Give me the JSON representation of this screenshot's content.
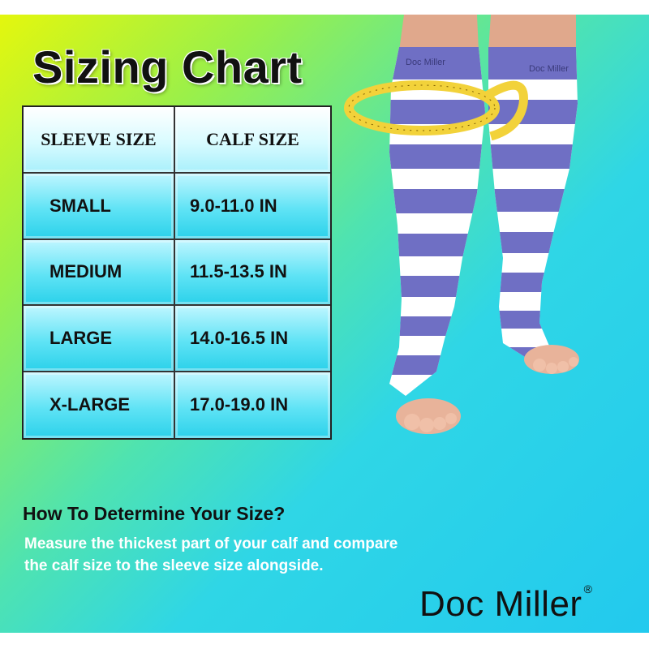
{
  "title": "Sizing Chart",
  "table": {
    "headers": [
      "SLEEVE SIZE",
      "CALF SIZE"
    ],
    "rows": [
      {
        "size": "SMALL",
        "calf": "9.0-11.0 IN"
      },
      {
        "size": "MEDIUM",
        "calf": "11.5-13.5 IN"
      },
      {
        "size": "LARGE",
        "calf": "14.0-16.5 IN"
      },
      {
        "size": "X-LARGE",
        "calf": "17.0-19.0 IN"
      }
    ]
  },
  "howto": {
    "title": "How To Determine Your Size?",
    "line1": "Measure the thickest part of your calf and compare",
    "line2": "the calf size to the sleeve size alongside."
  },
  "brand": {
    "name": "Doc Miller",
    "registered": "®"
  },
  "sock_text": "Doc Miller",
  "colors": {
    "stripe_blue": "#6f6fc4",
    "stripe_white": "#ffffff",
    "tape_yellow": "#f2d23a",
    "cell_cyan": "#2bd1ea"
  }
}
